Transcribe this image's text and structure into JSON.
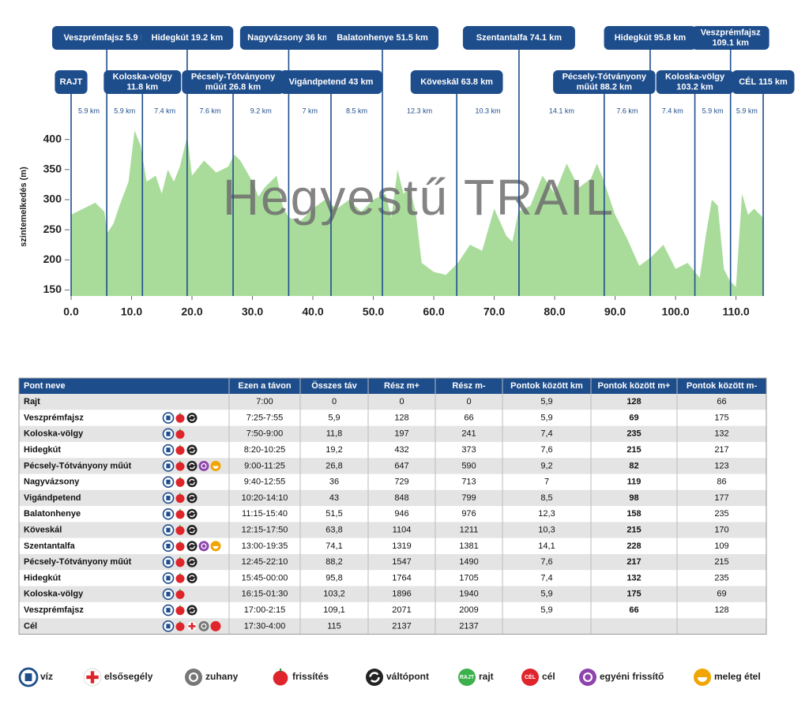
{
  "chart_data": {
    "type": "area",
    "title": "Hegyestű TRAIL",
    "y_label": "szintemelkedés (m)",
    "color": "#a9dc9b",
    "line_color": "#1e4d8c",
    "x": [
      0,
      2,
      4,
      5.5,
      6,
      7,
      8,
      9.5,
      10.5,
      11.5,
      12.5,
      14,
      15,
      16,
      17,
      18,
      19.2,
      20,
      22,
      24,
      26,
      27,
      28,
      30,
      31,
      32,
      34,
      35,
      36,
      38,
      40,
      42,
      44,
      46,
      48,
      50,
      52,
      53,
      54,
      55,
      56,
      57,
      58,
      60,
      62,
      64,
      66,
      68,
      70,
      72,
      73,
      74,
      76,
      78,
      80,
      82,
      84,
      86,
      87,
      88,
      90,
      92,
      94,
      96,
      98,
      100,
      102,
      104,
      105,
      106,
      107,
      108,
      109,
      110,
      111,
      112,
      113,
      114.5
    ],
    "values": [
      275,
      285,
      295,
      280,
      245,
      260,
      290,
      330,
      415,
      390,
      330,
      340,
      310,
      350,
      330,
      355,
      405,
      340,
      365,
      345,
      355,
      375,
      365,
      330,
      305,
      320,
      340,
      290,
      270,
      265,
      285,
      300,
      285,
      300,
      280,
      300,
      310,
      270,
      350,
      310,
      320,
      280,
      195,
      180,
      175,
      195,
      225,
      215,
      285,
      240,
      230,
      280,
      290,
      340,
      310,
      360,
      320,
      335,
      360,
      335,
      275,
      235,
      190,
      205,
      225,
      185,
      195,
      170,
      240,
      300,
      290,
      185,
      165,
      155,
      310,
      275,
      285,
      270
    ],
    "xlim": [
      0,
      114.5
    ],
    "ylim": [
      140,
      435
    ],
    "xticks": [
      {
        "value": 0,
        "label": "0.0"
      },
      {
        "value": 10,
        "label": "10.0"
      },
      {
        "value": 20,
        "label": "20.0"
      },
      {
        "value": 30,
        "label": "30.0"
      },
      {
        "value": 40,
        "label": "40.0"
      },
      {
        "value": 50,
        "label": "50.0"
      },
      {
        "value": 60,
        "label": "60.0"
      },
      {
        "value": 70,
        "label": "70.0"
      },
      {
        "value": 80,
        "label": "80.0"
      },
      {
        "value": 90,
        "label": "90.0"
      },
      {
        "value": 100,
        "label": "100.0"
      },
      {
        "value": 110,
        "label": "110.0"
      }
    ],
    "yticks": [
      150,
      200,
      250,
      300,
      350,
      400
    ],
    "checkpoints": [
      {
        "km": 0,
        "label": [
          "RAJT"
        ]
      },
      {
        "km": 5.9,
        "label": [
          "Veszprémfajsz 5.9 km"
        ]
      },
      {
        "km": 11.8,
        "label": [
          "Koloska-völgy",
          "11.8 km"
        ]
      },
      {
        "km": 19.2,
        "label": [
          "Hidegkút 19.2 km"
        ]
      },
      {
        "km": 26.8,
        "label": [
          "Pécsely-Tótványony",
          "műút 26.8 km"
        ]
      },
      {
        "km": 36,
        "label": [
          "Nagyvázsony 36 km"
        ]
      },
      {
        "km": 43,
        "label": [
          "Vigándpetend 43 km"
        ]
      },
      {
        "km": 51.5,
        "label": [
          "Balatonhenye 51.5 km"
        ]
      },
      {
        "km": 63.8,
        "label": [
          "Köveskál 63.8 km"
        ]
      },
      {
        "km": 74.1,
        "label": [
          "Szentantalfa 74.1 km"
        ]
      },
      {
        "km": 88.2,
        "label": [
          "Pécsely-Tótványony",
          "műút 88.2 km"
        ]
      },
      {
        "km": 95.8,
        "label": [
          "Hidegkút 95.8 km"
        ]
      },
      {
        "km": 103.2,
        "label": [
          "Koloska-völgy",
          "103.2 km"
        ]
      },
      {
        "km": 109.1,
        "label": [
          "Veszprémfajsz",
          "109.1 km"
        ]
      },
      {
        "km": 114.5,
        "label": [
          "CÉL 115 km"
        ]
      }
    ],
    "segments": [
      "5.9 km",
      "5.9 km",
      "7.4 km",
      "7.6 km",
      "9.2 km",
      "7 km",
      "8.5 km",
      "12.3 km",
      "10.3 km",
      "14.1 km",
      "7.6 km",
      "7.4 km",
      "5.9 km",
      "5.9 km"
    ]
  },
  "table": {
    "header": [
      "Pont neve",
      "Ezen a távon",
      "Összes táv",
      "Rész m+",
      "Rész m-",
      "Pontok között km",
      "Pontok között m+",
      "Pontok között m-"
    ],
    "rows": [
      [
        "Rajt",
        "7:00",
        "0",
        "0",
        "0",
        "5,9",
        "128",
        "66"
      ],
      [
        "Veszprémfajsz",
        "7:25-7:55",
        "5,9",
        "128",
        "66",
        "5,9",
        "69",
        "175"
      ],
      [
        "Koloska-völgy",
        "7:50-9:00",
        "11,8",
        "197",
        "241",
        "7,4",
        "235",
        "132"
      ],
      [
        "Hidegkút",
        "8:20-10:25",
        "19,2",
        "432",
        "373",
        "7,6",
        "215",
        "217"
      ],
      [
        "Pécsely-Tótványony műút",
        "9:00-11:25",
        "26,8",
        "647",
        "590",
        "9,2",
        "82",
        "123"
      ],
      [
        "Nagyvázsony",
        "9:40-12:55",
        "36",
        "729",
        "713",
        "7",
        "119",
        "86"
      ],
      [
        "Vigándpetend",
        "10:20-14:10",
        "43",
        "848",
        "799",
        "8,5",
        "98",
        "177"
      ],
      [
        "Balatonhenye",
        "11:15-15:40",
        "51,5",
        "946",
        "976",
        "12,3",
        "158",
        "235"
      ],
      [
        "Köveskál",
        "12:15-17:50",
        "63,8",
        "1104",
        "1211",
        "10,3",
        "215",
        "170"
      ],
      [
        "Szentantalfa",
        "13:00-19:35",
        "74,1",
        "1319",
        "1381",
        "14,1",
        "228",
        "109"
      ],
      [
        "Pécsely-Tótványony műút",
        "12:45-22:10",
        "88,2",
        "1547",
        "1490",
        "7,6",
        "217",
        "215"
      ],
      [
        "Hidegkút",
        "15:45-00:00",
        "95,8",
        "1764",
        "1705",
        "7,4",
        "132",
        "235"
      ],
      [
        "Koloska-völgy",
        "16:15-01:30",
        "103,2",
        "1896",
        "1940",
        "5,9",
        "175",
        "69"
      ],
      [
        "Veszprémfajsz",
        "17:00-2:15",
        "109,1",
        "2071",
        "2009",
        "5,9",
        "66",
        "128"
      ],
      [
        "Cél",
        "17:30-4:00",
        "115",
        "2137",
        "2137"
      ]
    ]
  },
  "legend": [
    {
      "label": "víz"
    },
    {
      "label": "elsősegély"
    },
    {
      "label": "zuhany"
    },
    {
      "label": "frissítés"
    },
    {
      "label": "váltópont"
    },
    {
      "label": "rajt",
      "badge": "RAJT"
    },
    {
      "label": "cél",
      "badge": "CÉL"
    },
    {
      "label": "egyéni frissítő"
    },
    {
      "label": "meleg étel"
    }
  ]
}
